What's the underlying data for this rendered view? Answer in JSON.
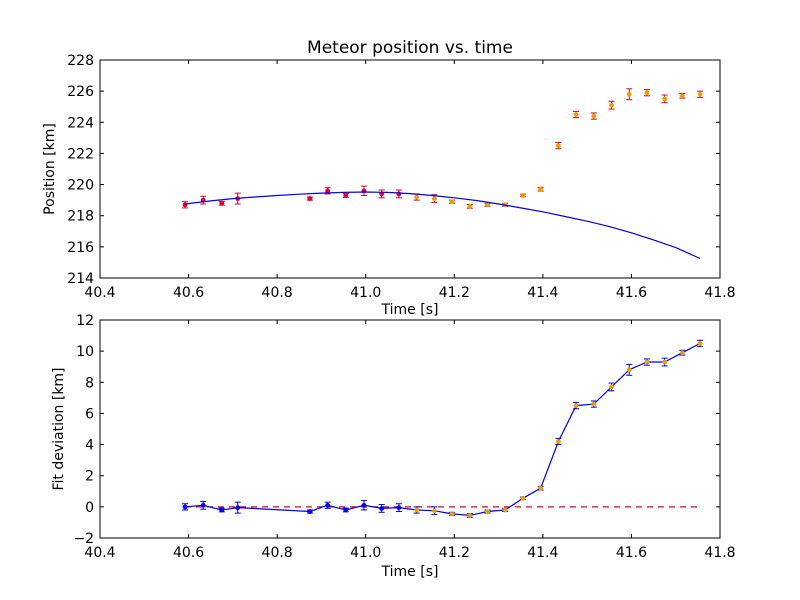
{
  "chart_data": [
    {
      "type": "scatter",
      "title": "Meteor position vs. time",
      "xlabel": "Time [s]",
      "ylabel": "Position [km]",
      "xlim": [
        40.4,
        41.8
      ],
      "ylim": [
        214,
        228
      ],
      "xticks": [
        40.4,
        40.6,
        40.8,
        41.0,
        41.2,
        41.4,
        41.6,
        41.8
      ],
      "xtick_labels": [
        "40.4",
        "40.6",
        "40.8",
        "41.0",
        "41.2",
        "41.4",
        "41.6",
        "41.8"
      ],
      "yticks": [
        214,
        216,
        218,
        220,
        222,
        224,
        226,
        228
      ],
      "ytick_labels": [
        "214",
        "216",
        "218",
        "220",
        "222",
        "224",
        "226",
        "228"
      ],
      "grid": false,
      "series": [
        {
          "style": "points-with-error-bars",
          "color": "#e0002a",
          "errbar_color": "#e0002a",
          "x": [
            40.592,
            40.633,
            40.675,
            40.711,
            40.874,
            40.914,
            40.955,
            40.996,
            41.036,
            41.075
          ],
          "y": [
            218.7,
            219.0,
            218.8,
            219.1,
            219.1,
            219.6,
            219.3,
            219.6,
            219.4,
            219.4
          ],
          "err": [
            0.2,
            0.25,
            0.12,
            0.35,
            0.1,
            0.2,
            0.12,
            0.3,
            0.25,
            0.25
          ]
        },
        {
          "style": "points-with-error-bars",
          "color": "#e6a000",
          "errbar_color": "#e0002a",
          "x": [
            41.115,
            41.155,
            41.195,
            41.235,
            41.275,
            41.315,
            41.355,
            41.395,
            41.435,
            41.475,
            41.515,
            41.555,
            41.595,
            41.635,
            41.675,
            41.715,
            41.755
          ],
          "y": [
            219.2,
            219.1,
            218.9,
            218.6,
            218.7,
            218.7,
            219.3,
            219.7,
            222.5,
            224.5,
            224.4,
            225.1,
            225.8,
            225.9,
            225.5,
            225.7,
            225.8
          ],
          "err": [
            0.2,
            0.25,
            0.1,
            0.12,
            0.1,
            0.1,
            0.08,
            0.12,
            0.2,
            0.2,
            0.2,
            0.25,
            0.35,
            0.2,
            0.25,
            0.15,
            0.2
          ]
        },
        {
          "style": "line",
          "color": "#0000ee",
          "x": [
            40.592,
            40.65,
            40.7,
            40.75,
            40.8,
            40.85,
            40.9,
            40.95,
            41.0,
            41.05,
            41.1,
            41.15,
            41.2,
            41.25,
            41.3,
            41.35,
            41.4,
            41.45,
            41.5,
            41.55,
            41.6,
            41.65,
            41.7,
            41.755
          ],
          "y": [
            218.75,
            218.95,
            219.1,
            219.2,
            219.3,
            219.38,
            219.45,
            219.5,
            219.52,
            219.5,
            219.42,
            219.3,
            219.15,
            218.98,
            218.75,
            218.5,
            218.25,
            217.95,
            217.65,
            217.3,
            216.9,
            216.45,
            215.95,
            215.25
          ]
        }
      ]
    },
    {
      "type": "line",
      "title": "",
      "xlabel": "Time [s]",
      "ylabel": "Fit deviation [km]",
      "xlim": [
        40.4,
        41.8
      ],
      "ylim": [
        -2,
        12
      ],
      "xticks": [
        40.4,
        40.6,
        40.8,
        41.0,
        41.2,
        41.4,
        41.6,
        41.8
      ],
      "xtick_labels": [
        "40.4",
        "40.6",
        "40.8",
        "41.0",
        "41.2",
        "41.4",
        "41.6",
        "41.8"
      ],
      "yticks": [
        -2,
        0,
        2,
        4,
        6,
        8,
        10,
        12
      ],
      "ytick_labels": [
        "−2",
        "0",
        "2",
        "4",
        "6",
        "8",
        "10",
        "12"
      ],
      "grid": false,
      "series": [
        {
          "style": "dashed-line",
          "color": "#e0002a",
          "x": [
            40.592,
            41.755
          ],
          "y": [
            0,
            0
          ]
        },
        {
          "style": "line",
          "color": "#0000ee",
          "x": [
            40.592,
            40.633,
            40.675,
            40.711,
            40.874,
            40.914,
            40.955,
            40.996,
            41.036,
            41.075,
            41.115,
            41.155,
            41.195,
            41.235,
            41.275,
            41.315,
            41.355,
            41.395,
            41.435,
            41.475,
            41.515,
            41.555,
            41.595,
            41.635,
            41.675,
            41.715,
            41.755
          ],
          "y": [
            0.0,
            0.1,
            -0.2,
            -0.05,
            -0.3,
            0.1,
            -0.2,
            0.1,
            -0.1,
            -0.05,
            -0.2,
            -0.25,
            -0.45,
            -0.55,
            -0.3,
            -0.2,
            0.55,
            1.2,
            4.2,
            6.5,
            6.6,
            7.7,
            8.8,
            9.3,
            9.3,
            9.9,
            10.5
          ]
        },
        {
          "style": "points-with-error-bars",
          "color": "#0000ee",
          "errbar_color": "#0000ee",
          "x": [
            40.592,
            40.633,
            40.675,
            40.711,
            40.874,
            40.914,
            40.955,
            40.996,
            41.036,
            41.075
          ],
          "y": [
            0.0,
            0.1,
            -0.2,
            -0.05,
            -0.3,
            0.1,
            -0.2,
            0.1,
            -0.1,
            -0.05
          ],
          "err": [
            0.2,
            0.25,
            0.12,
            0.35,
            0.1,
            0.2,
            0.12,
            0.3,
            0.25,
            0.25
          ]
        },
        {
          "style": "points-with-error-bars",
          "color": "#e6a000",
          "errbar_color": "#0000ee",
          "x": [
            41.115,
            41.155,
            41.195,
            41.235,
            41.275,
            41.315,
            41.355,
            41.395,
            41.435,
            41.475,
            41.515,
            41.555,
            41.595,
            41.635,
            41.675,
            41.715,
            41.755
          ],
          "y": [
            -0.2,
            -0.25,
            -0.45,
            -0.55,
            -0.3,
            -0.2,
            0.55,
            1.2,
            4.2,
            6.5,
            6.6,
            7.7,
            8.8,
            9.3,
            9.3,
            9.9,
            10.5
          ],
          "err": [
            0.2,
            0.25,
            0.1,
            0.12,
            0.1,
            0.1,
            0.08,
            0.12,
            0.2,
            0.2,
            0.2,
            0.25,
            0.35,
            0.2,
            0.25,
            0.15,
            0.2
          ]
        }
      ]
    }
  ]
}
